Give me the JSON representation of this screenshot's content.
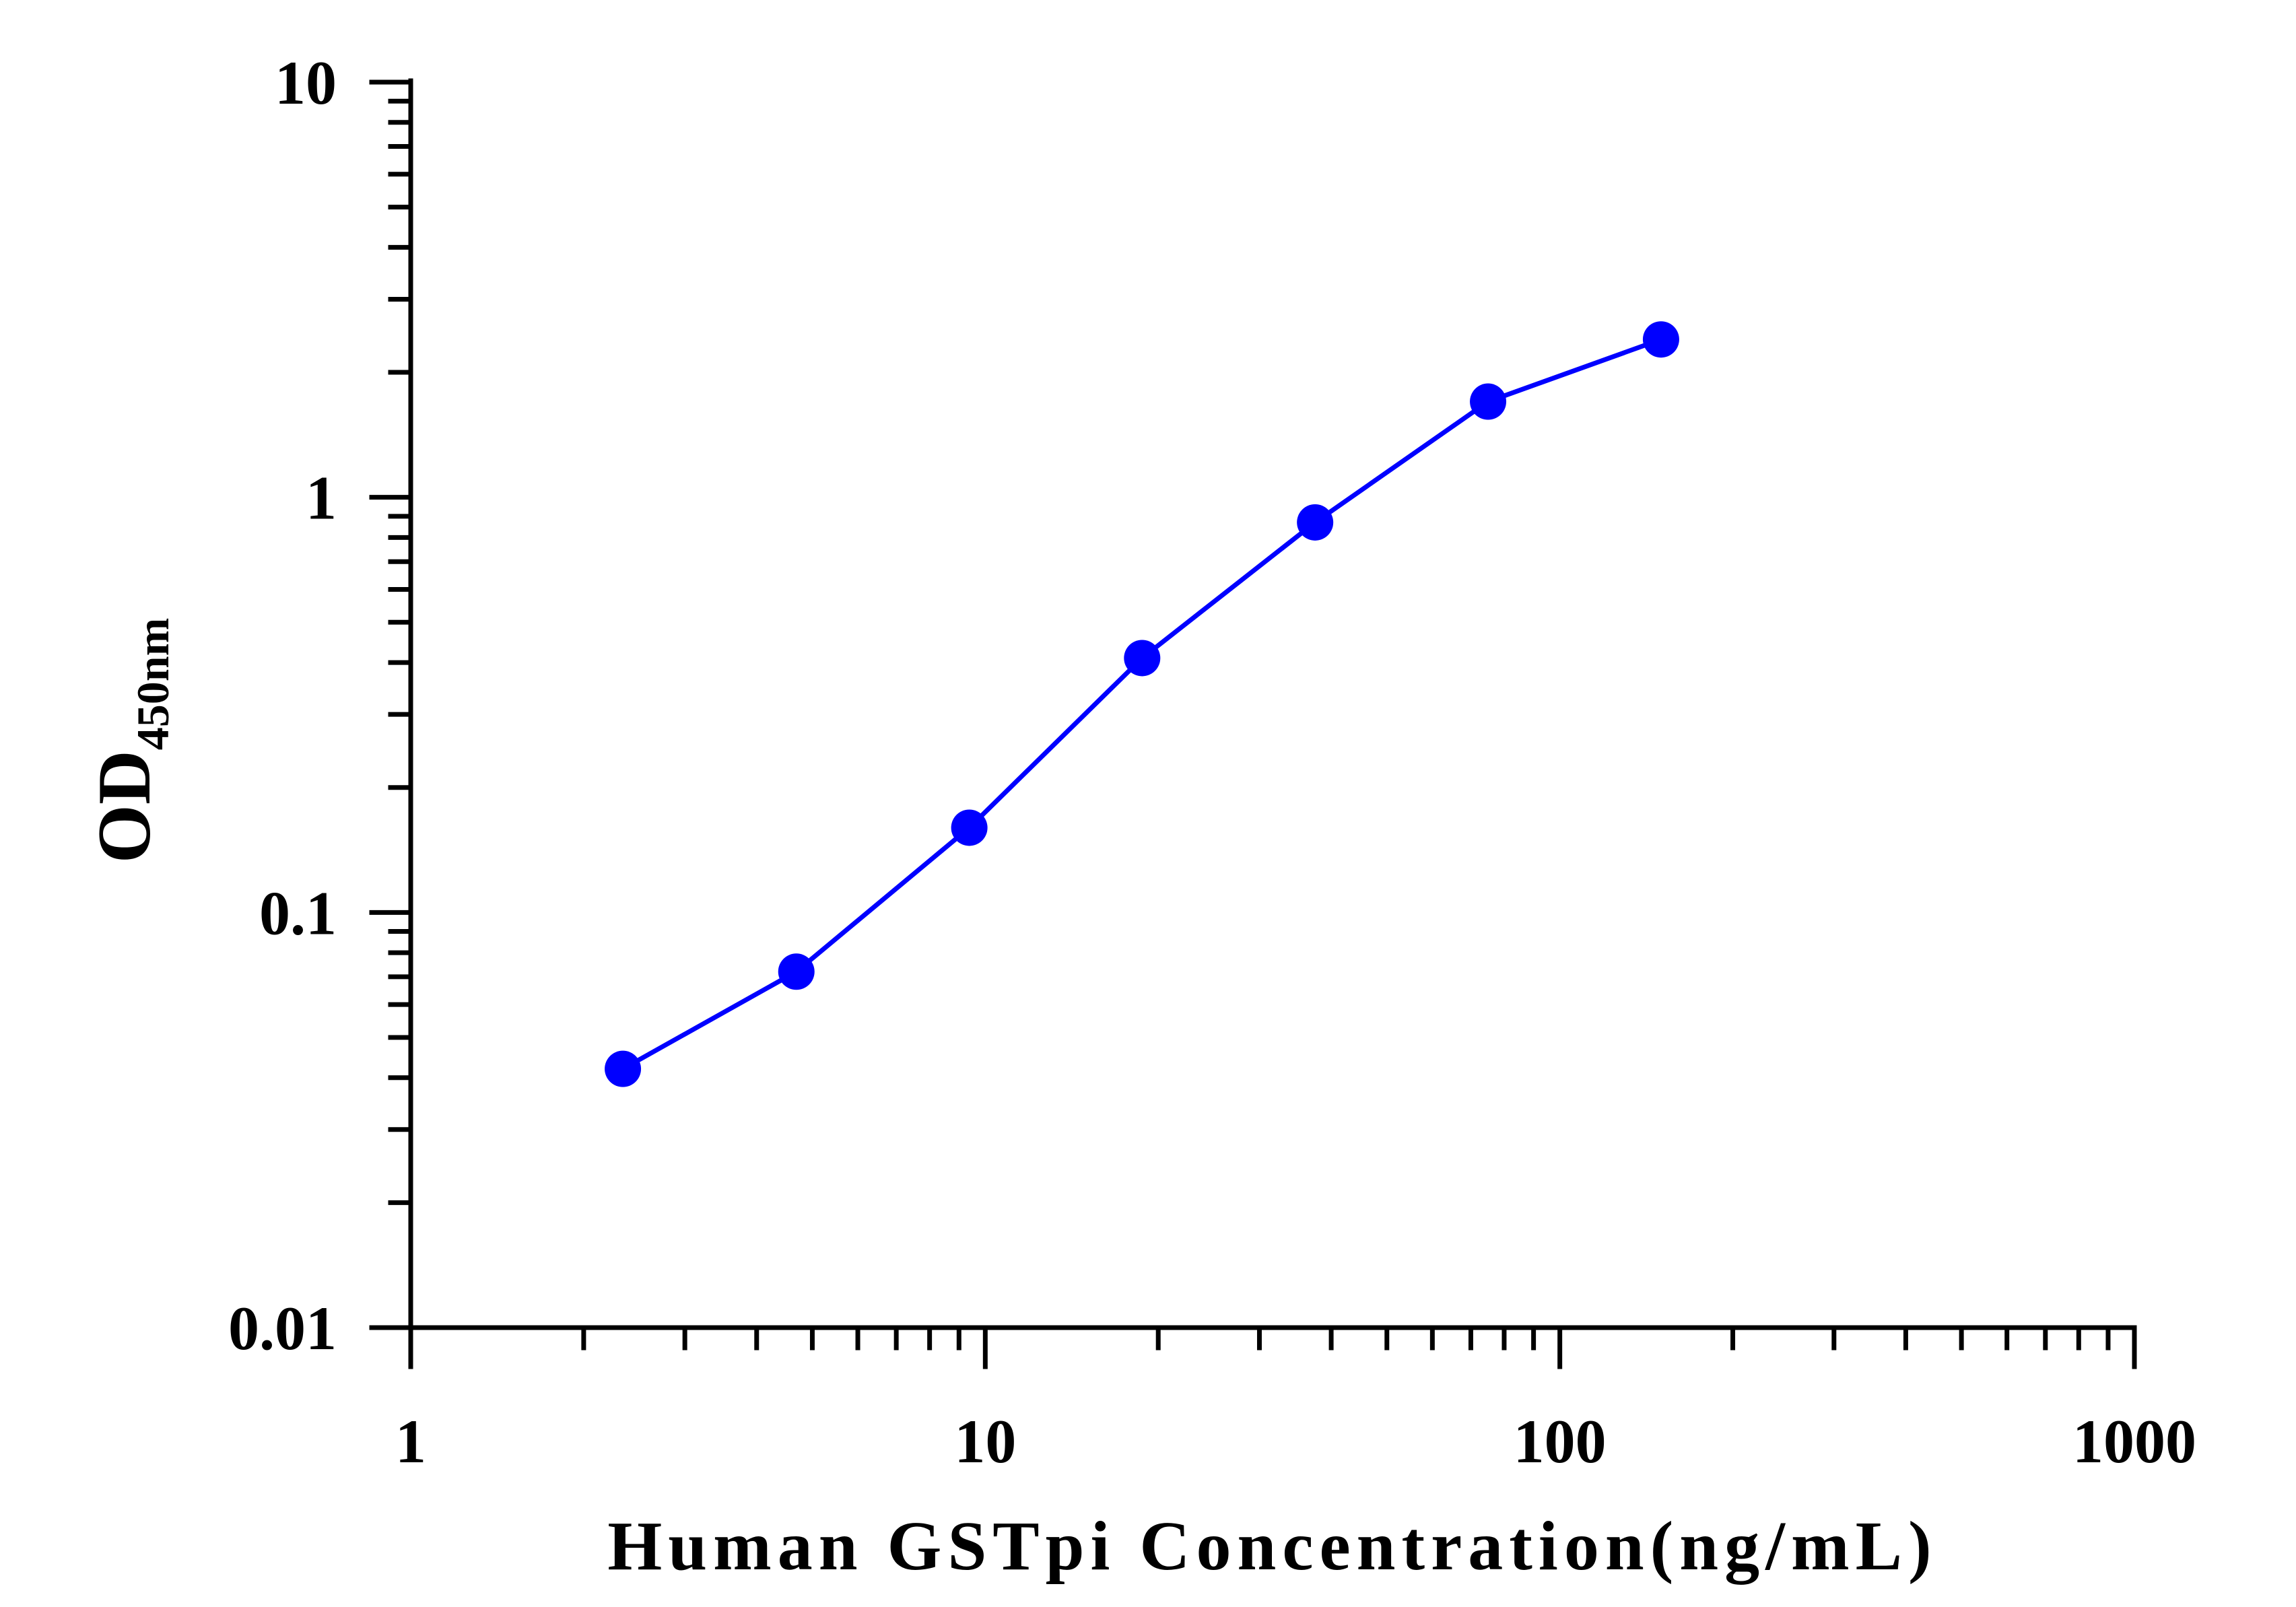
{
  "chart_data": {
    "type": "line",
    "xlabel": "Human GSTpi Concentration(ng/mL)",
    "ylabel": {
      "main": "OD",
      "subscript": "450nm"
    },
    "x_scale": "log",
    "y_scale": "log",
    "xlim": [
      1,
      1000
    ],
    "ylim": [
      0.01,
      10
    ],
    "x_ticks": [
      "1",
      "10",
      "100",
      "1000"
    ],
    "y_ticks": [
      "0.01",
      "0.1",
      "1",
      "10"
    ],
    "grid": false,
    "legend": "none",
    "series": [
      {
        "color": "#0000ff",
        "x": [
          2.34,
          4.69,
          9.38,
          18.75,
          37.5,
          75,
          150
        ],
        "y": [
          0.042,
          0.072,
          0.16,
          0.41,
          0.87,
          1.7,
          2.4
        ]
      }
    ]
  }
}
